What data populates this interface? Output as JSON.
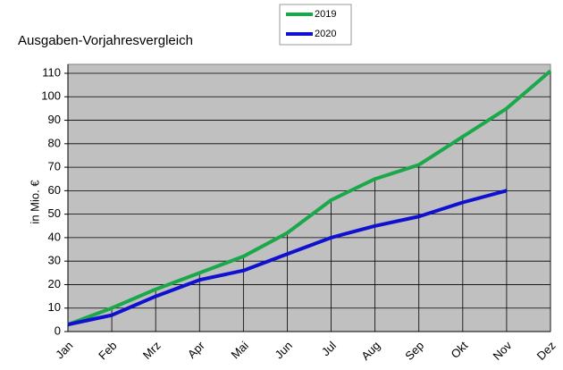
{
  "chart_data": {
    "type": "line",
    "title": "Ausgaben-Vorjahresvergleich",
    "y_label": "in Mio. €",
    "categories": [
      "Jan",
      "Feb",
      "Mrz",
      "Apr",
      "Mai",
      "Jun",
      "Jul",
      "Aug",
      "Sep",
      "Okt",
      "Nov",
      "Dez"
    ],
    "series": [
      {
        "name": "2019",
        "color": "#1aa84a",
        "values": [
          3,
          10,
          18,
          25,
          32,
          42,
          56,
          65,
          71,
          83,
          95,
          111
        ]
      },
      {
        "name": "2020",
        "color": "#1010d0",
        "values": [
          3,
          7,
          15,
          22,
          26,
          33,
          40,
          45,
          49,
          55,
          60,
          null
        ]
      }
    ],
    "ylim": [
      0,
      110
    ],
    "yticks": [
      0,
      10,
      20,
      30,
      40,
      50,
      60,
      70,
      80,
      90,
      100,
      110
    ],
    "grid": true
  }
}
